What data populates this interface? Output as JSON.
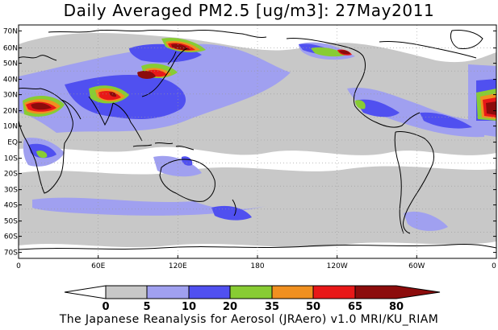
{
  "title": "Daily Averaged PM2.5 [ug/m3]: 27May2011",
  "footer": "The Japanese Reanalysis for Aerosol (JRAero) v1.0 MRI/KU_RIAM",
  "lat_labels": [
    "70N",
    "60N",
    "50N",
    "40N",
    "30N",
    "20N",
    "10N",
    "EQ",
    "10S",
    "20S",
    "30S",
    "40S",
    "50S",
    "60S",
    "70S"
  ],
  "lon_labels": [
    "0",
    "60E",
    "120E",
    "180",
    "120W",
    "60W",
    "0"
  ],
  "colorbar": {
    "ticks": [
      "0",
      "5",
      "10",
      "20",
      "35",
      "50",
      "65",
      "80"
    ],
    "colors": [
      "#ffffff",
      "#c8c8c8",
      "#a0a0f0",
      "#5050f0",
      "#88cc33",
      "#f09020",
      "#e81818",
      "#8c0c0c"
    ]
  }
}
